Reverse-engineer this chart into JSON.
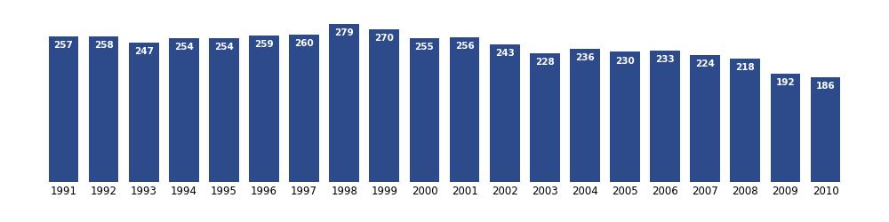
{
  "years": [
    1991,
    1992,
    1993,
    1994,
    1995,
    1996,
    1997,
    1998,
    1999,
    2000,
    2001,
    2002,
    2003,
    2004,
    2005,
    2006,
    2007,
    2008,
    2009,
    2010
  ],
  "values": [
    257,
    258,
    247,
    254,
    254,
    259,
    260,
    279,
    270,
    255,
    256,
    243,
    228,
    236,
    230,
    233,
    224,
    218,
    192,
    186
  ],
  "bar_color": "#2d4a8a",
  "label_color": "#ffffff",
  "label_fontsize": 7.5,
  "tick_fontsize": 8.5,
  "background_color": "#ffffff",
  "bar_width": 0.75,
  "ylim": [
    0,
    310
  ]
}
